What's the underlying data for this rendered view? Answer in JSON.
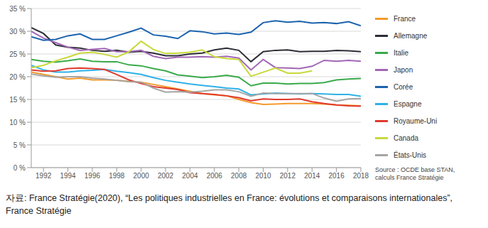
{
  "chart_data": {
    "type": "line",
    "note": "Source : OCDE base STAN, calculs France Stratégie",
    "caption": "자료: France Stratégie(2020), “Les politiques industrielles en France: évolutions et comparaisons internationales”, France Stratégie",
    "x": [
      1991,
      1992,
      1993,
      1994,
      1995,
      1996,
      1997,
      1998,
      1999,
      2000,
      2001,
      2002,
      2003,
      2004,
      2005,
      2006,
      2007,
      2008,
      2009,
      2010,
      2011,
      2012,
      2013,
      2014,
      2015,
      2016,
      2017,
      2018
    ],
    "xlim": [
      1991,
      2018
    ],
    "xticks": [
      1992,
      1994,
      1996,
      1998,
      2000,
      2002,
      2004,
      2006,
      2008,
      2010,
      2012,
      2014,
      2016,
      2018
    ],
    "ylim": [
      0,
      35
    ],
    "yticks": [
      {
        "value": 0,
        "label": "0 %"
      },
      {
        "value": 5,
        "label": "5 %"
      },
      {
        "value": 10,
        "label": "10 %"
      },
      {
        "value": 15,
        "label": "15 %"
      },
      {
        "value": 20,
        "label": "20 %"
      },
      {
        "value": 25,
        "label": "25 %"
      },
      {
        "value": 30,
        "label": "30 %"
      },
      {
        "value": 35,
        "label": "35 %"
      }
    ],
    "grid": true,
    "legend": "right",
    "series": [
      {
        "name": "France",
        "color": "#f39a2c",
        "values": [
          21,
          20.5,
          20,
          19.5,
          19.7,
          19.3,
          19.3,
          19.2,
          19,
          18.8,
          18.3,
          17.8,
          17.3,
          16.8,
          16.3,
          16,
          15.8,
          15,
          14.3,
          13.9,
          14,
          14.1,
          14.1,
          14.1,
          14,
          13.8,
          13.7,
          13.6
        ]
      },
      {
        "name": "Allemagne",
        "color": "#2d2d36",
        "values": [
          30.8,
          29.5,
          27,
          26.5,
          26.3,
          25.8,
          25.6,
          25.8,
          25.4,
          25.6,
          25.2,
          24.6,
          24.6,
          25,
          25.2,
          25.9,
          26.3,
          25.8,
          23.3,
          25.5,
          25.8,
          25.9,
          25.5,
          25.6,
          25.6,
          25.8,
          25.7,
          25.5
        ]
      },
      {
        "name": "Italie",
        "color": "#3aaa4c",
        "values": [
          23.8,
          23.4,
          23.2,
          23.5,
          23.9,
          23.4,
          23.3,
          23.3,
          22.6,
          22.4,
          21.8,
          21.3,
          20.4,
          20.1,
          19.8,
          20,
          20.3,
          19.9,
          18,
          18.6,
          18.6,
          18.4,
          18.5,
          18.5,
          18.7,
          19.3,
          19.5,
          19.6
        ]
      },
      {
        "name": "Japon",
        "color": "#a267b5",
        "values": [
          30,
          28.5,
          27.5,
          26.5,
          25.8,
          26,
          26.2,
          25.5,
          25.5,
          25.8,
          24.5,
          24,
          24.3,
          24.3,
          24.4,
          24.3,
          24.5,
          24.1,
          21.5,
          23.8,
          22,
          21.9,
          21.8,
          22.3,
          23.6,
          23.4,
          23.6,
          23.4
        ]
      },
      {
        "name": "Corée",
        "color": "#1c63ae",
        "values": [
          28.8,
          28,
          28.2,
          29,
          29.4,
          28.2,
          28.2,
          29,
          29.8,
          30.7,
          29.2,
          28.9,
          28.4,
          30.1,
          29.9,
          29.4,
          29.6,
          29.3,
          29.8,
          31.9,
          32.3,
          32,
          32.2,
          31.8,
          31.9,
          31.7,
          32.1,
          31.2
        ]
      },
      {
        "name": "Espagne",
        "color": "#2fb1e6",
        "values": [
          22.5,
          21.5,
          21,
          21,
          21.3,
          21.4,
          21.6,
          21.2,
          20.9,
          20.5,
          19.8,
          19.2,
          18.8,
          18.4,
          18.1,
          17.8,
          17.5,
          17.3,
          16,
          16.2,
          16.4,
          16.3,
          16.2,
          16.3,
          16.2,
          16.1,
          16.1,
          15.7
        ]
      },
      {
        "name": "Royaume-Uni",
        "color": "#e03a2e",
        "values": [
          21.5,
          21.2,
          21.3,
          21.8,
          21.9,
          21.8,
          21.6,
          20.5,
          19.3,
          18.5,
          17.8,
          17.5,
          17.2,
          16.5,
          16.3,
          16.1,
          15.8,
          15.4,
          14.7,
          15.1,
          15,
          15,
          15.1,
          14.5,
          14.1,
          13.8,
          13.6,
          13.5
        ]
      },
      {
        "name": "Canada",
        "color": "#c8d93b",
        "values": [
          22,
          22.5,
          23.5,
          24.3,
          25.2,
          25.4,
          24.9,
          24.3,
          25.5,
          27.8,
          26,
          25.1,
          25.2,
          25.4,
          25.9,
          24.4,
          24,
          23.8,
          20.1,
          21,
          21.9,
          20.8,
          20.8,
          21.3,
          null,
          null,
          null,
          null
        ]
      },
      {
        "name": "États-Unis",
        "color": "#a5a5a5",
        "values": [
          20.6,
          20.2,
          19.9,
          20,
          20,
          19.7,
          19.5,
          19.2,
          18.9,
          18.8,
          17.5,
          16.6,
          16.7,
          16.6,
          16.8,
          17.1,
          17.1,
          16.7,
          15.7,
          16.4,
          16.3,
          16.3,
          16.3,
          16.3,
          15.3,
          14.6,
          15.1,
          15.2
        ]
      }
    ]
  }
}
